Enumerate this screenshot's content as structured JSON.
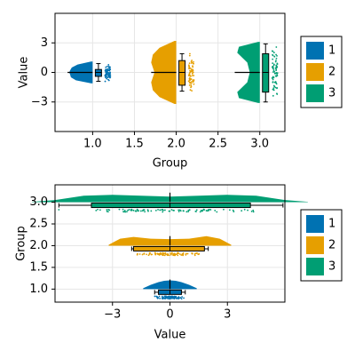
{
  "colors": {
    "g1": "#0072b2",
    "g2": "#e69f00",
    "g3": "#009e73",
    "grid": "#e6e6e6",
    "frame": "#000000"
  },
  "chart_data": [
    {
      "type": "raincloud",
      "orientation": "vertical",
      "xlabel": "Group",
      "ylabel": "Value",
      "xlim": [
        0.55,
        3.3
      ],
      "ylim": [
        -6,
        6
      ],
      "x_ticks": [
        1.0,
        1.5,
        2.0,
        2.5,
        3.0
      ],
      "x_tick_labels": [
        "1.0",
        "1.5",
        "2.0",
        "2.5",
        "3.0"
      ],
      "y_ticks": [
        -3,
        0,
        3
      ],
      "y_tick_labels": [
        "−3",
        "0",
        "3"
      ],
      "grid": true,
      "legend": {
        "placement": "right",
        "entries": [
          "1",
          "2",
          "3"
        ]
      },
      "groups": [
        {
          "name": "1",
          "position": 1,
          "median": 0.0,
          "q1": -0.4,
          "q3": 0.3,
          "whisker_low": -0.9,
          "whisker_high": 0.9,
          "density": {
            "values": [
              -1.1,
              -0.8,
              -0.5,
              -0.2,
              0.0,
              0.2,
              0.5,
              0.8,
              1.1
            ],
            "widths": [
              0.02,
              0.2,
              0.26,
              0.27,
              0.28,
              0.27,
              0.25,
              0.18,
              0.02
            ]
          }
        },
        {
          "name": "2",
          "position": 2,
          "median": 0.0,
          "q1": -1.3,
          "q3": 1.2,
          "whisker_low": -1.9,
          "whisker_high": 1.9,
          "density": {
            "values": [
              -3.2,
              -2.5,
              -1.8,
              -1.0,
              0.0,
              1.0,
              1.8,
              2.5,
              3.2
            ],
            "widths": [
              0.02,
              0.2,
              0.28,
              0.3,
              0.26,
              0.3,
              0.28,
              0.2,
              0.02
            ]
          }
        },
        {
          "name": "3",
          "position": 3,
          "median": 0.0,
          "q1": -2.0,
          "q3": 1.9,
          "whisker_low": -3.0,
          "whisker_high": 2.9,
          "density": {
            "values": [
              -3.1,
              -2.6,
              -2.0,
              -1.0,
              0.0,
              1.0,
              2.0,
              2.6,
              3.1
            ],
            "widths": [
              0.02,
              0.25,
              0.27,
              0.15,
              0.12,
              0.15,
              0.27,
              0.25,
              0.02
            ]
          }
        }
      ]
    },
    {
      "type": "raincloud",
      "orientation": "horizontal",
      "xlabel": "Value",
      "ylabel": "Group",
      "xlim": [
        -6,
        6
      ],
      "ylim": [
        0.7,
        3.4
      ],
      "x_ticks": [
        -3,
        0,
        3
      ],
      "x_tick_labels": [
        "−3",
        "0",
        "3"
      ],
      "y_ticks": [
        1.0,
        1.5,
        2.0,
        2.5,
        3.0
      ],
      "y_tick_labels": [
        "1.0",
        "1.5",
        "2.0",
        "2.5",
        "3.0"
      ],
      "grid": true,
      "legend": {
        "placement": "right",
        "entries": [
          "1",
          "2",
          "3"
        ]
      },
      "groups": [
        {
          "name": "1",
          "position": 1,
          "median": 0.0,
          "q1": -0.6,
          "q3": 0.6,
          "whisker_low": -0.8,
          "whisker_high": 0.8,
          "density": {
            "values": [
              -1.4,
              -1.0,
              -0.6,
              -0.3,
              0.0,
              0.3,
              0.6,
              1.0,
              1.4
            ],
            "heights": [
              0.02,
              0.1,
              0.16,
              0.19,
              0.2,
              0.19,
              0.16,
              0.1,
              0.02
            ]
          }
        },
        {
          "name": "2",
          "position": 2,
          "median": 0.0,
          "q1": -1.9,
          "q3": 1.8,
          "whisker_low": -2.0,
          "whisker_high": 2.0,
          "density": {
            "values": [
              -3.2,
              -2.6,
              -1.9,
              -1.0,
              0.0,
              1.0,
              1.9,
              2.6,
              3.2
            ],
            "heights": [
              0.02,
              0.16,
              0.2,
              0.16,
              0.15,
              0.16,
              0.22,
              0.16,
              0.02
            ]
          }
        },
        {
          "name": "3",
          "position": 3,
          "median": 0.0,
          "q1": -4.1,
          "q3": 4.2,
          "whisker_low": -5.8,
          "whisker_high": 5.9,
          "density": {
            "values": [
              -7.2,
              -6.0,
              -4.5,
              -3.0,
              -1.5,
              0.0,
              1.5,
              3.0,
              4.5,
              6.0,
              7.2
            ],
            "heights": [
              0.01,
              0.05,
              0.15,
              0.17,
              0.15,
              0.13,
              0.15,
              0.17,
              0.15,
              0.05,
              0.01
            ]
          }
        }
      ]
    }
  ]
}
